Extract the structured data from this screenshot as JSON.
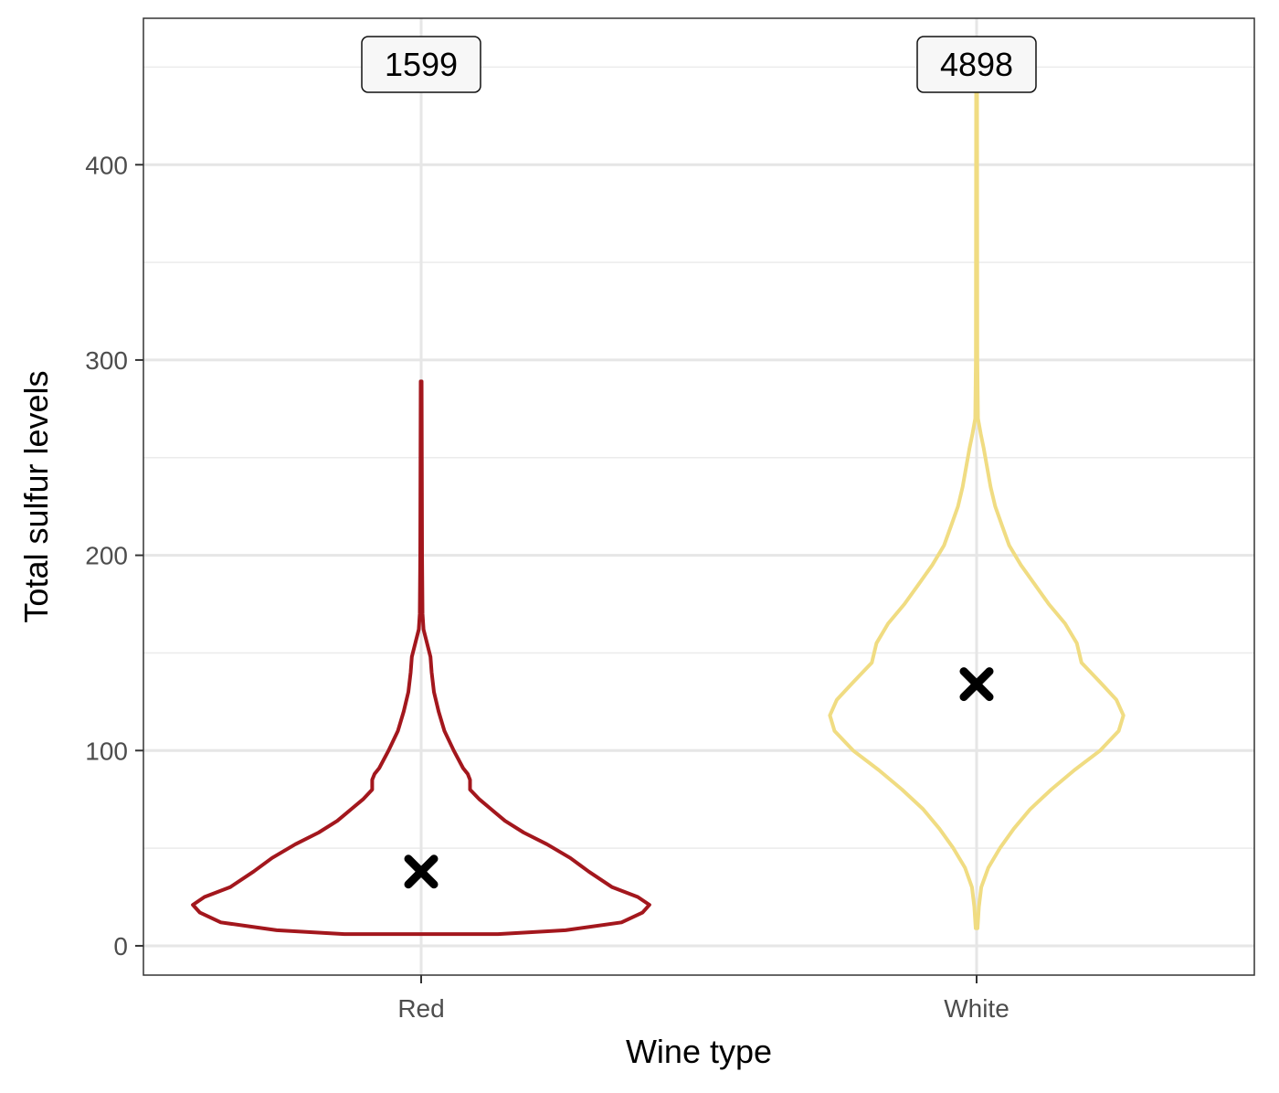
{
  "chart_data": {
    "type": "violin",
    "xlabel": "Wine type",
    "ylabel": "Total sulfur levels",
    "categories": [
      "Red",
      "White"
    ],
    "ylim": [
      -15,
      475
    ],
    "yticks": [
      0,
      100,
      200,
      300,
      400
    ],
    "ytick_labels": [
      "0",
      "100",
      "200",
      "300",
      "400"
    ],
    "grid": true,
    "series": [
      {
        "category": "Red",
        "color": "#a3171d",
        "count": 1599,
        "count_label": "1599",
        "mean": 38,
        "min": 6,
        "max": 289,
        "density_halfwidth": [
          [
            6,
            0.33
          ],
          [
            8,
            0.62
          ],
          [
            12,
            0.86
          ],
          [
            17,
            0.95
          ],
          [
            21,
            0.98
          ],
          [
            25,
            0.93
          ],
          [
            30,
            0.82
          ],
          [
            38,
            0.72
          ],
          [
            45,
            0.64
          ],
          [
            52,
            0.54
          ],
          [
            58,
            0.44
          ],
          [
            64,
            0.36
          ],
          [
            70,
            0.3
          ],
          [
            75,
            0.25
          ],
          [
            80,
            0.21
          ],
          [
            85,
            0.21
          ],
          [
            88,
            0.2
          ],
          [
            91,
            0.18
          ],
          [
            100,
            0.14
          ],
          [
            110,
            0.1
          ],
          [
            120,
            0.075
          ],
          [
            130,
            0.055
          ],
          [
            140,
            0.045
          ],
          [
            148,
            0.04
          ],
          [
            155,
            0.025
          ],
          [
            162,
            0.01
          ],
          [
            170,
            0.006
          ],
          [
            200,
            0.004
          ],
          [
            289,
            0.002
          ]
        ]
      },
      {
        "category": "White",
        "color": "#f0dc82",
        "count": 4898,
        "count_label": "4898",
        "mean": 134,
        "min": 9,
        "max": 440,
        "density_halfwidth": [
          [
            9,
            0.004
          ],
          [
            20,
            0.01
          ],
          [
            30,
            0.02
          ],
          [
            40,
            0.05
          ],
          [
            50,
            0.1
          ],
          [
            60,
            0.16
          ],
          [
            70,
            0.23
          ],
          [
            80,
            0.32
          ],
          [
            90,
            0.42
          ],
          [
            100,
            0.53
          ],
          [
            110,
            0.61
          ],
          [
            118,
            0.63
          ],
          [
            126,
            0.6
          ],
          [
            135,
            0.53
          ],
          [
            145,
            0.45
          ],
          [
            155,
            0.43
          ],
          [
            165,
            0.38
          ],
          [
            175,
            0.31
          ],
          [
            185,
            0.25
          ],
          [
            195,
            0.19
          ],
          [
            205,
            0.14
          ],
          [
            215,
            0.11
          ],
          [
            225,
            0.08
          ],
          [
            235,
            0.06
          ],
          [
            245,
            0.045
          ],
          [
            255,
            0.03
          ],
          [
            262,
            0.018
          ],
          [
            270,
            0.006
          ],
          [
            300,
            0.003
          ],
          [
            440,
            0.002
          ]
        ]
      }
    ]
  }
}
